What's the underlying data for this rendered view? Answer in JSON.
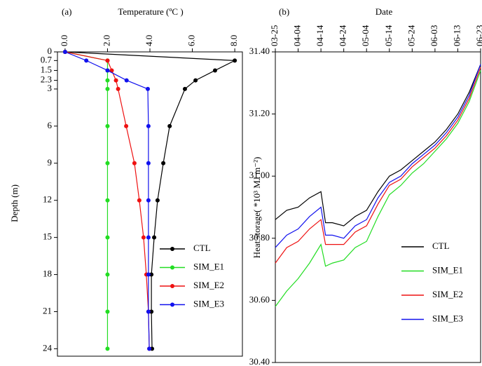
{
  "chart_data": [
    {
      "type": "line",
      "orientation": "vertical",
      "y_inverted": true,
      "markers": true,
      "panel_label": "(a)",
      "xlabel": "Temperature (ºC )",
      "ylabel": "Depth (m)",
      "xlim": [
        -0.36,
        8.36
      ],
      "ylim": [
        0,
        24.6
      ],
      "xticks": [
        {
          "value": 0,
          "label": "0.0"
        },
        {
          "value": 2,
          "label": "2.0"
        },
        {
          "value": 4,
          "label": "4.0"
        },
        {
          "value": 6,
          "label": "6.0"
        },
        {
          "value": 8,
          "label": "8.0"
        }
      ],
      "yticks": [
        0,
        0.7,
        1.5,
        2.3,
        3,
        6,
        9,
        12,
        15,
        18,
        21,
        24
      ],
      "y": [
        0,
        0.7,
        1.5,
        2.3,
        3,
        6,
        9,
        12,
        15,
        18,
        21,
        24
      ],
      "series": [
        {
          "name": "CTL",
          "color": "#000000",
          "values": [
            0.0,
            8.0,
            7.07,
            6.15,
            5.65,
            4.93,
            4.63,
            4.36,
            4.2,
            4.07,
            4.07,
            4.1
          ]
        },
        {
          "name": "SIM_E1",
          "color": "#22dd22",
          "values": [
            0.0,
            2.0,
            2.0,
            2.0,
            2.0,
            2.0,
            2.0,
            2.0,
            2.0,
            2.0,
            2.0,
            2.0
          ]
        },
        {
          "name": "SIM_E2",
          "color": "#ee1111",
          "values": [
            0.0,
            2.0,
            2.2,
            2.4,
            2.5,
            2.88,
            3.27,
            3.5,
            3.7,
            3.83,
            3.93,
            3.97
          ]
        },
        {
          "name": "SIM_E3",
          "color": "#1111ee",
          "values": [
            0.0,
            1.0,
            2.0,
            2.9,
            3.9,
            3.93,
            3.93,
            3.93,
            3.93,
            3.93,
            3.93,
            3.97
          ]
        }
      ]
    },
    {
      "type": "line",
      "orientation": "horizontal",
      "y_inverted": false,
      "markers": false,
      "panel_label": "(b)",
      "xlabel": "Date",
      "ylabel": "Heat storage( *10³ MJ m⁻²)",
      "xlim": [
        "03-25",
        "06-23"
      ],
      "ylim": [
        30.4,
        31.4
      ],
      "xticks": [
        "03-25",
        "04-04",
        "04-14",
        "04-24",
        "05-04",
        "05-14",
        "05-24",
        "06-03",
        "06-13",
        "06-23"
      ],
      "yticks": [
        {
          "value": 30.4,
          "label": "30.40"
        },
        {
          "value": 30.6,
          "label": "30.60"
        },
        {
          "value": 30.8,
          "label": "30.80"
        },
        {
          "value": 31.0,
          "label": "31.00"
        },
        {
          "value": 31.2,
          "label": "31.20"
        },
        {
          "value": 31.4,
          "label": "31.40"
        }
      ],
      "x": [
        "03-25",
        "03-30",
        "04-04",
        "04-09",
        "04-14",
        "04-16",
        "04-19",
        "04-24",
        "04-29",
        "05-04",
        "05-09",
        "05-14",
        "05-19",
        "05-24",
        "05-29",
        "06-03",
        "06-08",
        "06-13",
        "06-18",
        "06-23"
      ],
      "series": [
        {
          "name": "CTL",
          "color": "#000000",
          "values": [
            30.86,
            30.89,
            30.9,
            30.93,
            30.95,
            30.85,
            30.85,
            30.84,
            30.87,
            30.89,
            30.95,
            31.0,
            31.02,
            31.05,
            31.08,
            31.11,
            31.15,
            31.2,
            31.27,
            31.36
          ]
        },
        {
          "name": "SIM_E1",
          "color": "#22dd22",
          "values": [
            30.58,
            30.63,
            30.67,
            30.72,
            30.78,
            30.71,
            30.72,
            30.73,
            30.77,
            30.79,
            30.87,
            30.94,
            30.97,
            31.01,
            31.04,
            31.08,
            31.12,
            31.17,
            31.24,
            31.34
          ]
        },
        {
          "name": "SIM_E2",
          "color": "#ee1111",
          "values": [
            30.72,
            30.77,
            30.79,
            30.83,
            30.86,
            30.78,
            30.78,
            30.78,
            30.82,
            30.84,
            30.91,
            30.97,
            30.99,
            31.03,
            31.06,
            31.09,
            31.13,
            31.18,
            31.25,
            31.35
          ]
        },
        {
          "name": "SIM_E3",
          "color": "#1111ee",
          "values": [
            30.77,
            30.81,
            30.83,
            30.87,
            30.9,
            30.81,
            30.81,
            30.8,
            30.84,
            30.86,
            30.93,
            30.98,
            31.0,
            31.04,
            31.07,
            31.1,
            31.14,
            31.19,
            31.26,
            31.36
          ]
        }
      ]
    }
  ]
}
